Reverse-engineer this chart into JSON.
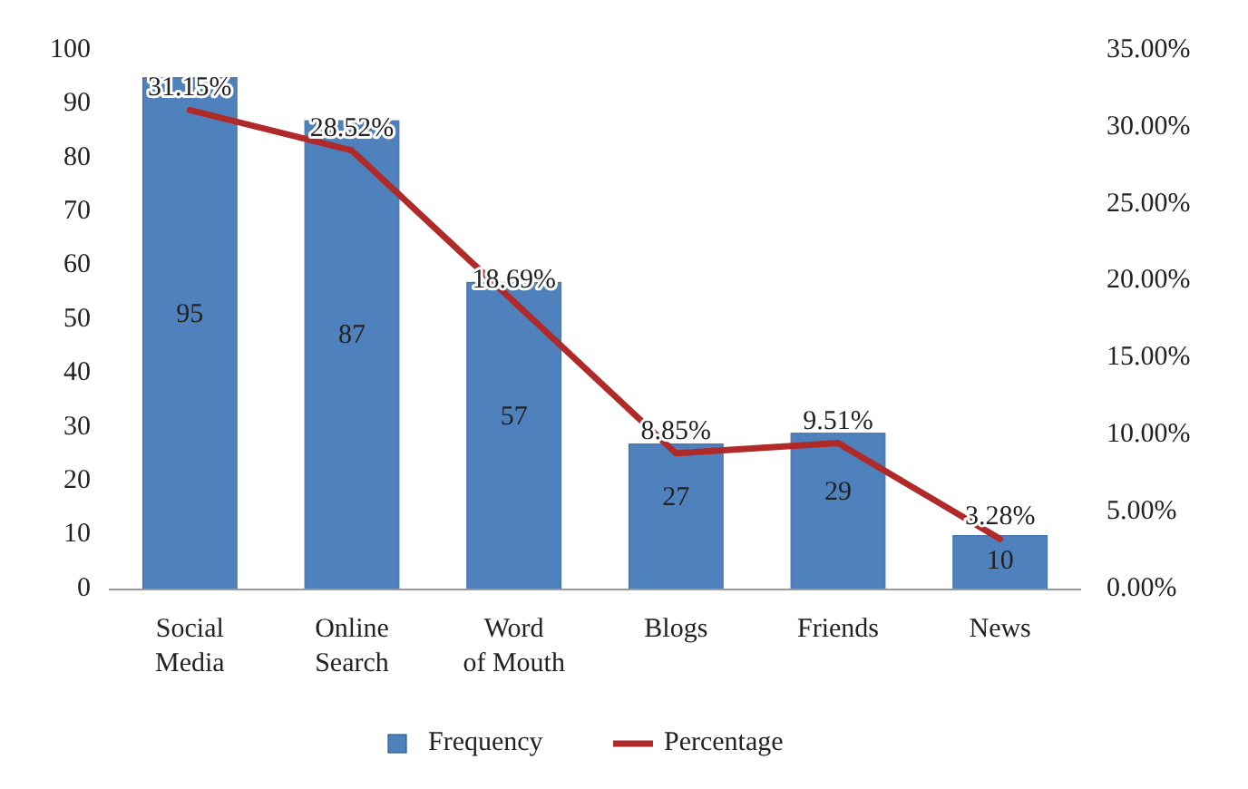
{
  "chart_data": {
    "type": "bar",
    "categories": [
      "Social Media",
      "Online Search",
      "Word of Mouth",
      "Blogs",
      "Friends",
      "News"
    ],
    "series": [
      {
        "name": "Frequency",
        "color": "#4f81bd",
        "values": [
          95,
          87,
          57,
          27,
          29,
          10
        ],
        "value_labels": [
          "95",
          "87",
          "57",
          "27",
          "29",
          "10"
        ]
      },
      {
        "name": "Percentage",
        "type": "line",
        "axis": "y2",
        "color": "#b02a2a",
        "values": [
          31.15,
          28.52,
          18.69,
          8.85,
          9.51,
          3.28
        ],
        "value_labels": [
          "31.15%",
          "28.52%",
          "18.69%",
          "8.85%",
          "9.51%",
          "3.28%"
        ]
      }
    ],
    "ylim": [
      0,
      100
    ],
    "yticks": [
      0,
      10,
      20,
      30,
      40,
      50,
      60,
      70,
      80,
      90,
      100
    ],
    "y2lim": [
      0,
      35
    ],
    "y2ticks": [
      {
        "value": 0,
        "label": "0.00%"
      },
      {
        "value": 5,
        "label": "5.00%"
      },
      {
        "value": 10,
        "label": "10.00%"
      },
      {
        "value": 15,
        "label": "15.00%"
      },
      {
        "value": 20,
        "label": "20.00%"
      },
      {
        "value": 25,
        "label": "25.00%"
      },
      {
        "value": 30,
        "label": "30.00%"
      },
      {
        "value": 35,
        "label": "35.00%"
      }
    ],
    "legend": "bottom",
    "marker": "none"
  }
}
